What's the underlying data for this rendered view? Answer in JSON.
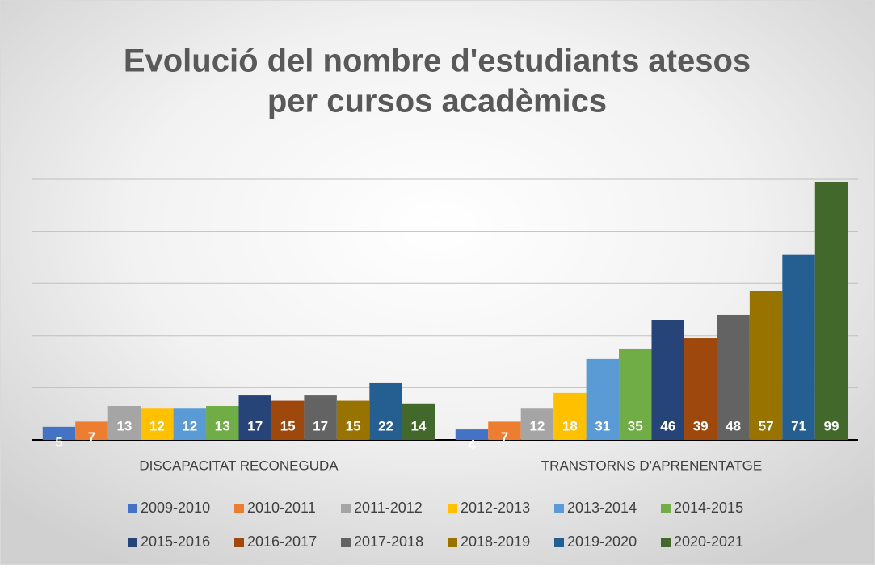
{
  "chart_data": {
    "type": "bar",
    "title": [
      "Evolució del nombre d'estudiants atesos",
      "per cursos acadèmics"
    ],
    "categories": [
      "DISCAPACITAT RECONEGUDA",
      "TRANSTORNS D'APRENENTATGE"
    ],
    "series": [
      {
        "name": "2009-2010",
        "color": "#4472c4",
        "values": [
          5,
          4
        ]
      },
      {
        "name": "2010-2011",
        "color": "#ed7d31",
        "values": [
          7,
          7
        ]
      },
      {
        "name": "2011-2012",
        "color": "#a5a5a5",
        "values": [
          13,
          12
        ]
      },
      {
        "name": "2012-2013",
        "color": "#ffc000",
        "values": [
          12,
          18
        ]
      },
      {
        "name": "2013-2014",
        "color": "#5b9bd5",
        "values": [
          12,
          31
        ]
      },
      {
        "name": "2014-2015",
        "color": "#70ad47",
        "values": [
          13,
          35
        ]
      },
      {
        "name": "2015-2016",
        "color": "#264478",
        "values": [
          17,
          46
        ]
      },
      {
        "name": "2016-2017",
        "color": "#9e480e",
        "values": [
          15,
          39
        ]
      },
      {
        "name": "2017-2018",
        "color": "#636363",
        "values": [
          17,
          48
        ]
      },
      {
        "name": "2018-2019",
        "color": "#997300",
        "values": [
          15,
          57
        ]
      },
      {
        "name": "2019-2020",
        "color": "#255e91",
        "values": [
          22,
          71
        ]
      },
      {
        "name": "2020-2021",
        "color": "#43682b",
        "values": [
          14,
          99
        ]
      }
    ],
    "ylim": [
      0,
      100
    ],
    "yticks": [
      0,
      20,
      40,
      60,
      80,
      100
    ],
    "grid": true,
    "legend": "bottom"
  }
}
